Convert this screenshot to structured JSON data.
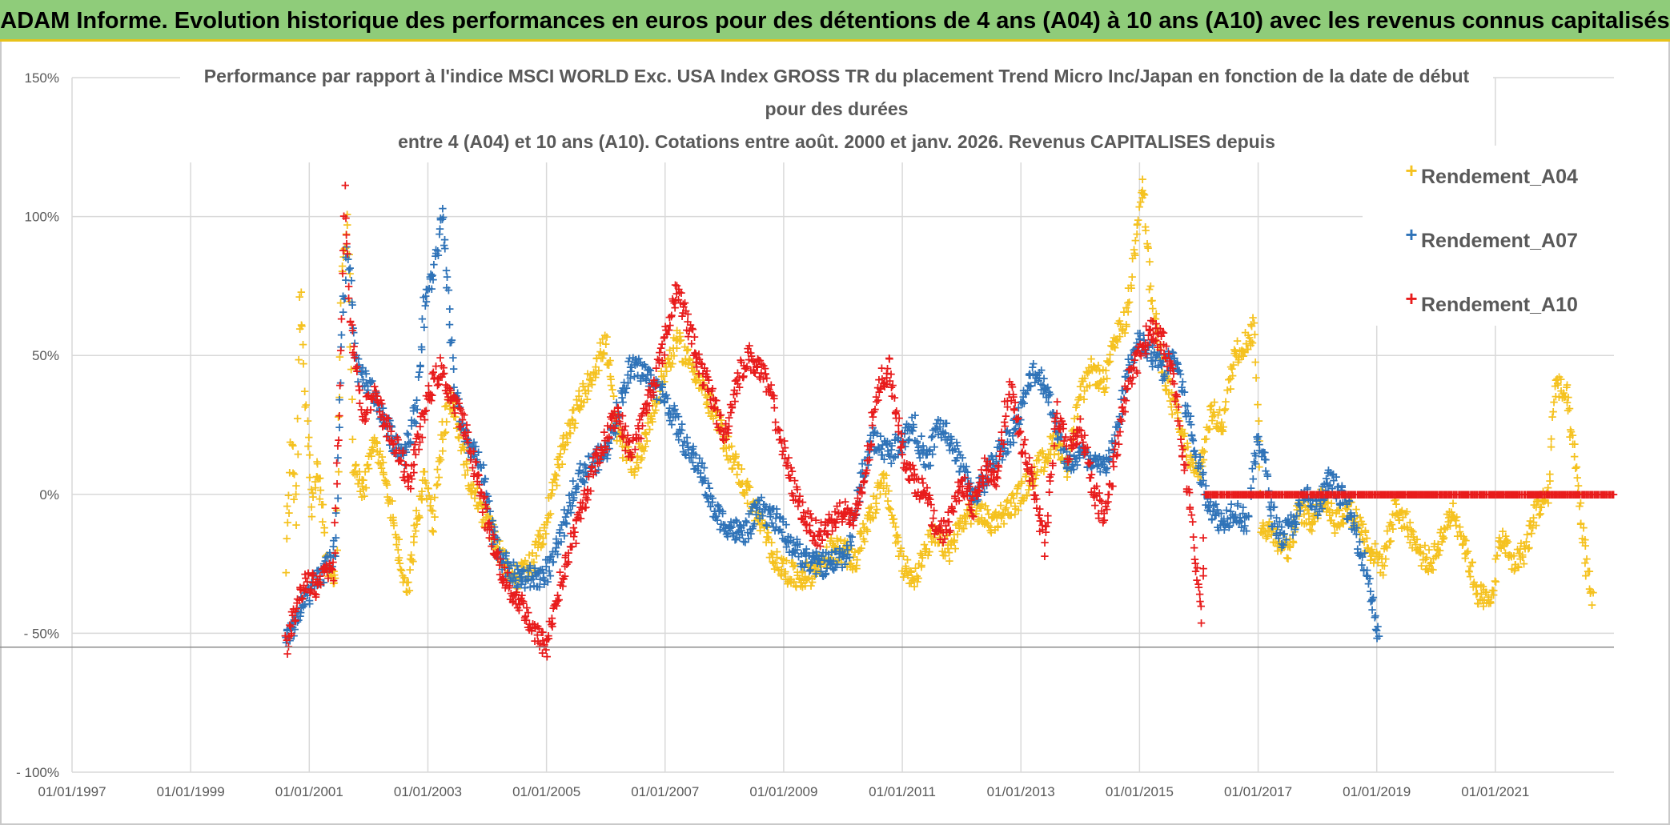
{
  "header": {
    "banner": "ADAM Informe. Evolution historique des performances en euros pour des détentions de 4 ans (A04) à 10 ans (A10) avec les revenus connus capitalisés"
  },
  "chart_data": {
    "type": "scatter",
    "title_lines": [
      "Performance par rapport à l'indice MSCI WORLD Exc. USA Index GROSS TR  du placement Trend Micro Inc/Japan en fonction de la date de début",
      "pour des durées",
      "entre 4 (A04) et 10 ans (A10). Cotations entre août. 2000 et janv. 2026. Revenus CAPITALISES depuis"
    ],
    "x_ticks": [
      "01/01/1997",
      "01/01/1999",
      "01/01/2001",
      "01/01/2003",
      "01/01/2005",
      "01/01/2007",
      "01/01/2009",
      "01/01/2011",
      "01/01/2013",
      "01/01/2015",
      "01/01/2017",
      "01/01/2019",
      "01/01/2021"
    ],
    "y_ticks": [
      "150%",
      "100%",
      "50%",
      "0%",
      "- 50%",
      "- 100%"
    ],
    "y_tick_values": [
      150,
      100,
      50,
      0,
      -50,
      -100
    ],
    "xlim": [
      1997.0,
      2023.0
    ],
    "ylim": [
      -100,
      150
    ],
    "ref_line": -55,
    "legend_position": "top-right",
    "series": [
      {
        "name": "Rendement_A04",
        "color": "#f5c220",
        "start": 2000.6,
        "end": 2022.65,
        "anchors": [
          [
            2000.6,
            -25
          ],
          [
            2000.7,
            20
          ],
          [
            2000.78,
            -10
          ],
          [
            2000.85,
            75
          ],
          [
            2000.95,
            30
          ],
          [
            2001.05,
            -5
          ],
          [
            2001.15,
            10
          ],
          [
            2001.3,
            -25
          ],
          [
            2001.45,
            -30
          ],
          [
            2001.55,
            80
          ],
          [
            2001.65,
            100
          ],
          [
            2001.75,
            10
          ],
          [
            2001.9,
            0
          ],
          [
            2002.1,
            20
          ],
          [
            2002.3,
            5
          ],
          [
            2002.5,
            -20
          ],
          [
            2002.65,
            -35
          ],
          [
            2002.8,
            -10
          ],
          [
            2002.95,
            5
          ],
          [
            2003.1,
            -10
          ],
          [
            2003.2,
            15
          ],
          [
            2003.35,
            35
          ],
          [
            2003.5,
            25
          ],
          [
            2003.7,
            5
          ],
          [
            2003.9,
            -5
          ],
          [
            2004.1,
            -15
          ],
          [
            2004.3,
            -25
          ],
          [
            2004.5,
            -30
          ],
          [
            2004.75,
            -25
          ],
          [
            2005.0,
            -10
          ],
          [
            2005.2,
            10
          ],
          [
            2005.5,
            30
          ],
          [
            2005.8,
            45
          ],
          [
            2006.0,
            55
          ],
          [
            2006.2,
            20
          ],
          [
            2006.5,
            10
          ],
          [
            2006.8,
            30
          ],
          [
            2007.0,
            45
          ],
          [
            2007.2,
            55
          ],
          [
            2007.5,
            45
          ],
          [
            2007.8,
            30
          ],
          [
            2008.0,
            20
          ],
          [
            2008.3,
            5
          ],
          [
            2008.6,
            -10
          ],
          [
            2008.9,
            -25
          ],
          [
            2009.2,
            -30
          ],
          [
            2009.5,
            -28
          ],
          [
            2009.8,
            -20
          ],
          [
            2010.0,
            -20
          ],
          [
            2010.2,
            -25
          ],
          [
            2010.4,
            -10
          ],
          [
            2010.7,
            5
          ],
          [
            2011.0,
            -25
          ],
          [
            2011.2,
            -30
          ],
          [
            2011.5,
            -15
          ],
          [
            2011.8,
            -20
          ],
          [
            2012.0,
            -10
          ],
          [
            2012.2,
            -5
          ],
          [
            2012.5,
            -10
          ],
          [
            2012.8,
            -5
          ],
          [
            2013.0,
            0
          ],
          [
            2013.3,
            10
          ],
          [
            2013.6,
            20
          ],
          [
            2013.8,
            10
          ],
          [
            2014.0,
            35
          ],
          [
            2014.2,
            45
          ],
          [
            2014.4,
            40
          ],
          [
            2014.6,
            55
          ],
          [
            2014.8,
            65
          ],
          [
            2014.95,
            95
          ],
          [
            2015.05,
            115
          ],
          [
            2015.2,
            70
          ],
          [
            2015.4,
            45
          ],
          [
            2015.6,
            30
          ],
          [
            2015.8,
            15
          ],
          [
            2016.0,
            5
          ],
          [
            2016.2,
            30
          ],
          [
            2016.4,
            25
          ],
          [
            2016.6,
            50
          ],
          [
            2016.8,
            55
          ],
          [
            2016.95,
            60
          ],
          [
            2017.05,
            -10
          ],
          [
            2017.3,
            -15
          ],
          [
            2017.5,
            -20
          ],
          [
            2017.7,
            -5
          ],
          [
            2017.9,
            -10
          ],
          [
            2018.1,
            0
          ],
          [
            2018.3,
            -10
          ],
          [
            2018.5,
            -5
          ],
          [
            2018.7,
            -10
          ],
          [
            2018.9,
            -20
          ],
          [
            2019.1,
            -25
          ],
          [
            2019.3,
            -5
          ],
          [
            2019.5,
            -10
          ],
          [
            2019.7,
            -20
          ],
          [
            2019.9,
            -25
          ],
          [
            2020.1,
            -15
          ],
          [
            2020.3,
            -5
          ],
          [
            2020.5,
            -20
          ],
          [
            2020.7,
            -35
          ],
          [
            2020.9,
            -40
          ],
          [
            2021.1,
            -15
          ],
          [
            2021.3,
            -25
          ],
          [
            2021.5,
            -20
          ],
          [
            2021.7,
            -5
          ],
          [
            2021.9,
            0
          ],
          [
            2022.0,
            40
          ],
          [
            2022.2,
            35
          ],
          [
            2022.35,
            10
          ],
          [
            2022.5,
            -20
          ],
          [
            2022.65,
            -40
          ]
        ]
      },
      {
        "name": "Rendement_A07",
        "color": "#2f73b8",
        "start": 2000.6,
        "end": 2019.05,
        "anchors": [
          [
            2000.6,
            -52
          ],
          [
            2000.8,
            -45
          ],
          [
            2001.0,
            -35
          ],
          [
            2001.2,
            -30
          ],
          [
            2001.3,
            -25
          ],
          [
            2001.45,
            -20
          ],
          [
            2001.55,
            60
          ],
          [
            2001.65,
            90
          ],
          [
            2001.8,
            45
          ],
          [
            2002.0,
            40
          ],
          [
            2002.2,
            30
          ],
          [
            2002.4,
            20
          ],
          [
            2002.6,
            15
          ],
          [
            2002.8,
            30
          ],
          [
            2002.95,
            70
          ],
          [
            2003.1,
            80
          ],
          [
            2003.25,
            100
          ],
          [
            2003.45,
            40
          ],
          [
            2003.6,
            20
          ],
          [
            2003.8,
            15
          ],
          [
            2003.95,
            5
          ],
          [
            2004.1,
            -15
          ],
          [
            2004.3,
            -25
          ],
          [
            2004.5,
            -30
          ],
          [
            2004.7,
            -30
          ],
          [
            2004.9,
            -30
          ],
          [
            2005.1,
            -25
          ],
          [
            2005.3,
            -10
          ],
          [
            2005.5,
            5
          ],
          [
            2005.7,
            10
          ],
          [
            2006.0,
            15
          ],
          [
            2006.2,
            30
          ],
          [
            2006.4,
            45
          ],
          [
            2006.6,
            45
          ],
          [
            2006.8,
            40
          ],
          [
            2007.0,
            35
          ],
          [
            2007.2,
            25
          ],
          [
            2007.4,
            15
          ],
          [
            2007.6,
            10
          ],
          [
            2007.8,
            -5
          ],
          [
            2008.0,
            -10
          ],
          [
            2008.3,
            -15
          ],
          [
            2008.6,
            -5
          ],
          [
            2008.9,
            -10
          ],
          [
            2009.2,
            -20
          ],
          [
            2009.5,
            -25
          ],
          [
            2009.8,
            -25
          ],
          [
            2010.1,
            -20
          ],
          [
            2010.3,
            5
          ],
          [
            2010.5,
            20
          ],
          [
            2010.8,
            15
          ],
          [
            2011.0,
            20
          ],
          [
            2011.2,
            25
          ],
          [
            2011.4,
            10
          ],
          [
            2011.6,
            25
          ],
          [
            2011.8,
            20
          ],
          [
            2012.0,
            10
          ],
          [
            2012.2,
            0
          ],
          [
            2012.4,
            5
          ],
          [
            2012.6,
            15
          ],
          [
            2012.8,
            20
          ],
          [
            2013.0,
            30
          ],
          [
            2013.2,
            45
          ],
          [
            2013.4,
            40
          ],
          [
            2013.6,
            25
          ],
          [
            2013.8,
            10
          ],
          [
            2014.0,
            15
          ],
          [
            2014.2,
            10
          ],
          [
            2014.4,
            10
          ],
          [
            2014.6,
            20
          ],
          [
            2014.8,
            45
          ],
          [
            2015.0,
            55
          ],
          [
            2015.2,
            50
          ],
          [
            2015.4,
            45
          ],
          [
            2015.6,
            50
          ],
          [
            2015.8,
            30
          ],
          [
            2016.0,
            10
          ],
          [
            2016.2,
            -5
          ],
          [
            2016.4,
            -10
          ],
          [
            2016.6,
            -5
          ],
          [
            2016.8,
            -10
          ],
          [
            2017.0,
            20
          ],
          [
            2017.1,
            15
          ],
          [
            2017.2,
            -5
          ],
          [
            2017.4,
            -15
          ],
          [
            2017.6,
            -10
          ],
          [
            2017.8,
            0
          ],
          [
            2018.0,
            -5
          ],
          [
            2018.2,
            5
          ],
          [
            2018.4,
            0
          ],
          [
            2018.6,
            -10
          ],
          [
            2018.8,
            -25
          ],
          [
            2018.95,
            -40
          ],
          [
            2019.05,
            -55
          ]
        ]
      },
      {
        "name": "Rendement_A10",
        "color": "#e81c1c",
        "start": 2000.6,
        "end": 2023.0,
        "zero_after": 2016.1,
        "anchors": [
          [
            2000.6,
            -55
          ],
          [
            2000.8,
            -40
          ],
          [
            2000.95,
            -30
          ],
          [
            2001.15,
            -35
          ],
          [
            2001.3,
            -25
          ],
          [
            2001.4,
            -30
          ],
          [
            2001.5,
            20
          ],
          [
            2001.6,
            110
          ],
          [
            2001.7,
            60
          ],
          [
            2001.9,
            30
          ],
          [
            2002.1,
            35
          ],
          [
            2002.3,
            25
          ],
          [
            2002.5,
            15
          ],
          [
            2002.7,
            5
          ],
          [
            2002.85,
            20
          ],
          [
            2003.0,
            35
          ],
          [
            2003.2,
            45
          ],
          [
            2003.4,
            35
          ],
          [
            2003.6,
            25
          ],
          [
            2003.8,
            10
          ],
          [
            2004.0,
            -10
          ],
          [
            2004.2,
            -25
          ],
          [
            2004.4,
            -35
          ],
          [
            2004.6,
            -40
          ],
          [
            2004.8,
            -50
          ],
          [
            2005.0,
            -55
          ],
          [
            2005.2,
            -35
          ],
          [
            2005.4,
            -20
          ],
          [
            2005.6,
            -5
          ],
          [
            2005.8,
            10
          ],
          [
            2006.0,
            20
          ],
          [
            2006.2,
            30
          ],
          [
            2006.4,
            15
          ],
          [
            2006.6,
            25
          ],
          [
            2006.8,
            40
          ],
          [
            2007.0,
            55
          ],
          [
            2007.2,
            75
          ],
          [
            2007.4,
            60
          ],
          [
            2007.6,
            45
          ],
          [
            2007.8,
            35
          ],
          [
            2008.0,
            20
          ],
          [
            2008.2,
            40
          ],
          [
            2008.4,
            50
          ],
          [
            2008.6,
            45
          ],
          [
            2008.8,
            35
          ],
          [
            2009.0,
            15
          ],
          [
            2009.2,
            0
          ],
          [
            2009.4,
            -10
          ],
          [
            2009.6,
            -15
          ],
          [
            2009.8,
            -10
          ],
          [
            2010.0,
            -5
          ],
          [
            2010.2,
            -10
          ],
          [
            2010.4,
            10
          ],
          [
            2010.6,
            40
          ],
          [
            2010.8,
            45
          ],
          [
            2011.0,
            15
          ],
          [
            2011.2,
            5
          ],
          [
            2011.4,
            0
          ],
          [
            2011.6,
            -15
          ],
          [
            2011.8,
            -10
          ],
          [
            2012.0,
            5
          ],
          [
            2012.2,
            -5
          ],
          [
            2012.4,
            10
          ],
          [
            2012.6,
            5
          ],
          [
            2012.8,
            40
          ],
          [
            2013.0,
            20
          ],
          [
            2013.2,
            5
          ],
          [
            2013.4,
            -20
          ],
          [
            2013.6,
            30
          ],
          [
            2013.8,
            15
          ],
          [
            2014.0,
            25
          ],
          [
            2014.2,
            5
          ],
          [
            2014.4,
            -10
          ],
          [
            2014.6,
            15
          ],
          [
            2014.8,
            40
          ],
          [
            2015.0,
            50
          ],
          [
            2015.2,
            60
          ],
          [
            2015.4,
            55
          ],
          [
            2015.6,
            40
          ],
          [
            2015.75,
            10
          ],
          [
            2015.85,
            -5
          ],
          [
            2016.0,
            -35
          ],
          [
            2016.05,
            -45
          ],
          [
            2016.1,
            0
          ]
        ]
      }
    ]
  }
}
